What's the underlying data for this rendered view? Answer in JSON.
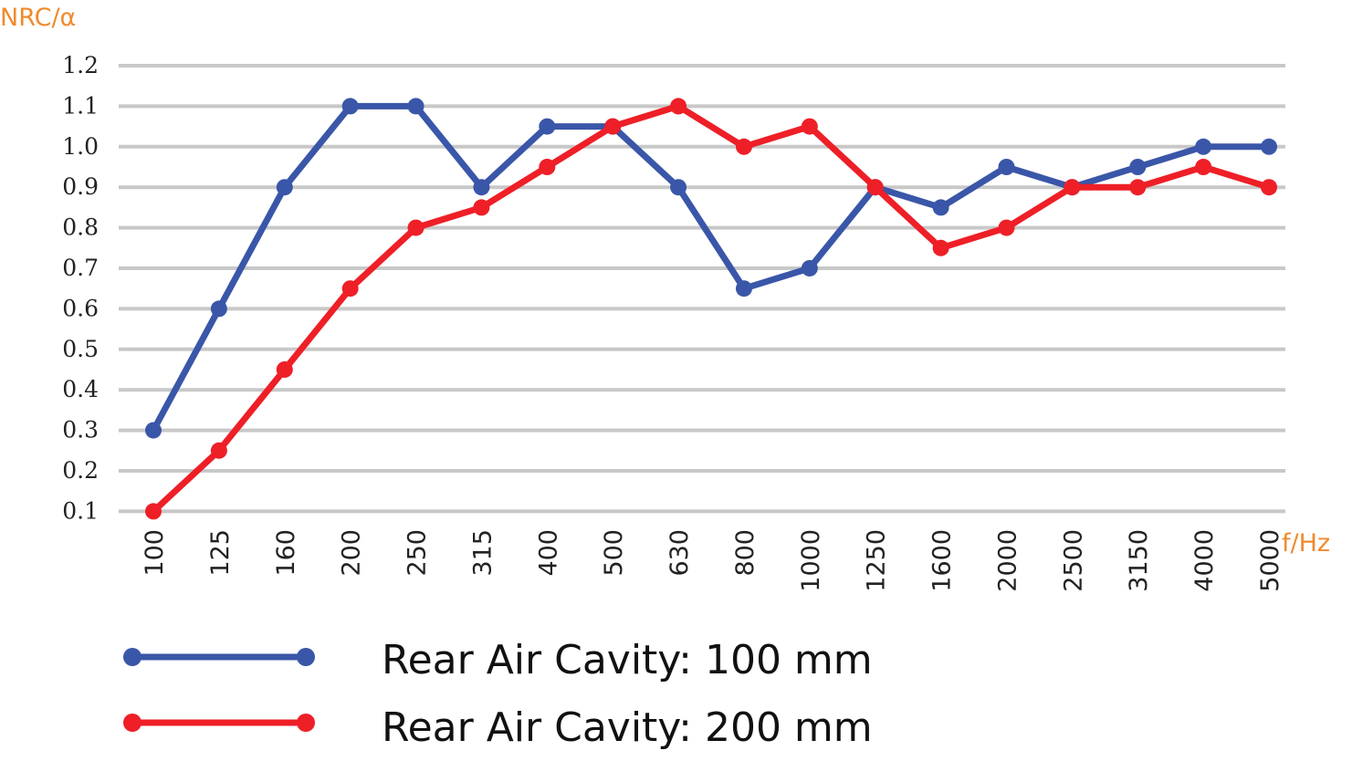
{
  "chart_data": {
    "type": "line",
    "title": "",
    "xlabel": "f/Hz",
    "ylabel": "NRC/α",
    "ylim": [
      0.1,
      1.2
    ],
    "yticks": [
      "0.1",
      "0.2",
      "0.3",
      "0.4",
      "0.5",
      "0.6",
      "0.7",
      "0.8",
      "0.9",
      "1.0",
      "1.1",
      "1.2"
    ],
    "grid": true,
    "legend_position": "bottom",
    "categories": [
      "100",
      "125",
      "160",
      "200",
      "250",
      "315",
      "400",
      "500",
      "630",
      "800",
      "1000",
      "1250",
      "1600",
      "2000",
      "2500",
      "3150",
      "4000",
      "5000"
    ],
    "series": [
      {
        "name": "Rear Air Cavity: 100 mm",
        "color": "#3A56A8",
        "values": [
          0.3,
          0.6,
          0.9,
          1.1,
          1.1,
          0.9,
          1.05,
          1.05,
          0.9,
          0.65,
          0.7,
          0.9,
          0.85,
          0.95,
          0.9,
          0.95,
          1.0,
          1.0
        ]
      },
      {
        "name": "Rear Air Cavity: 200 mm",
        "color": "#EE1F27",
        "values": [
          0.1,
          0.25,
          0.45,
          0.65,
          0.8,
          0.85,
          0.95,
          1.05,
          1.1,
          1.0,
          1.05,
          0.9,
          0.75,
          0.8,
          0.9,
          0.9,
          0.95,
          0.9
        ]
      }
    ]
  },
  "colors": {
    "axis_title": "#F08A2E",
    "grid": "#C8C8C8"
  }
}
